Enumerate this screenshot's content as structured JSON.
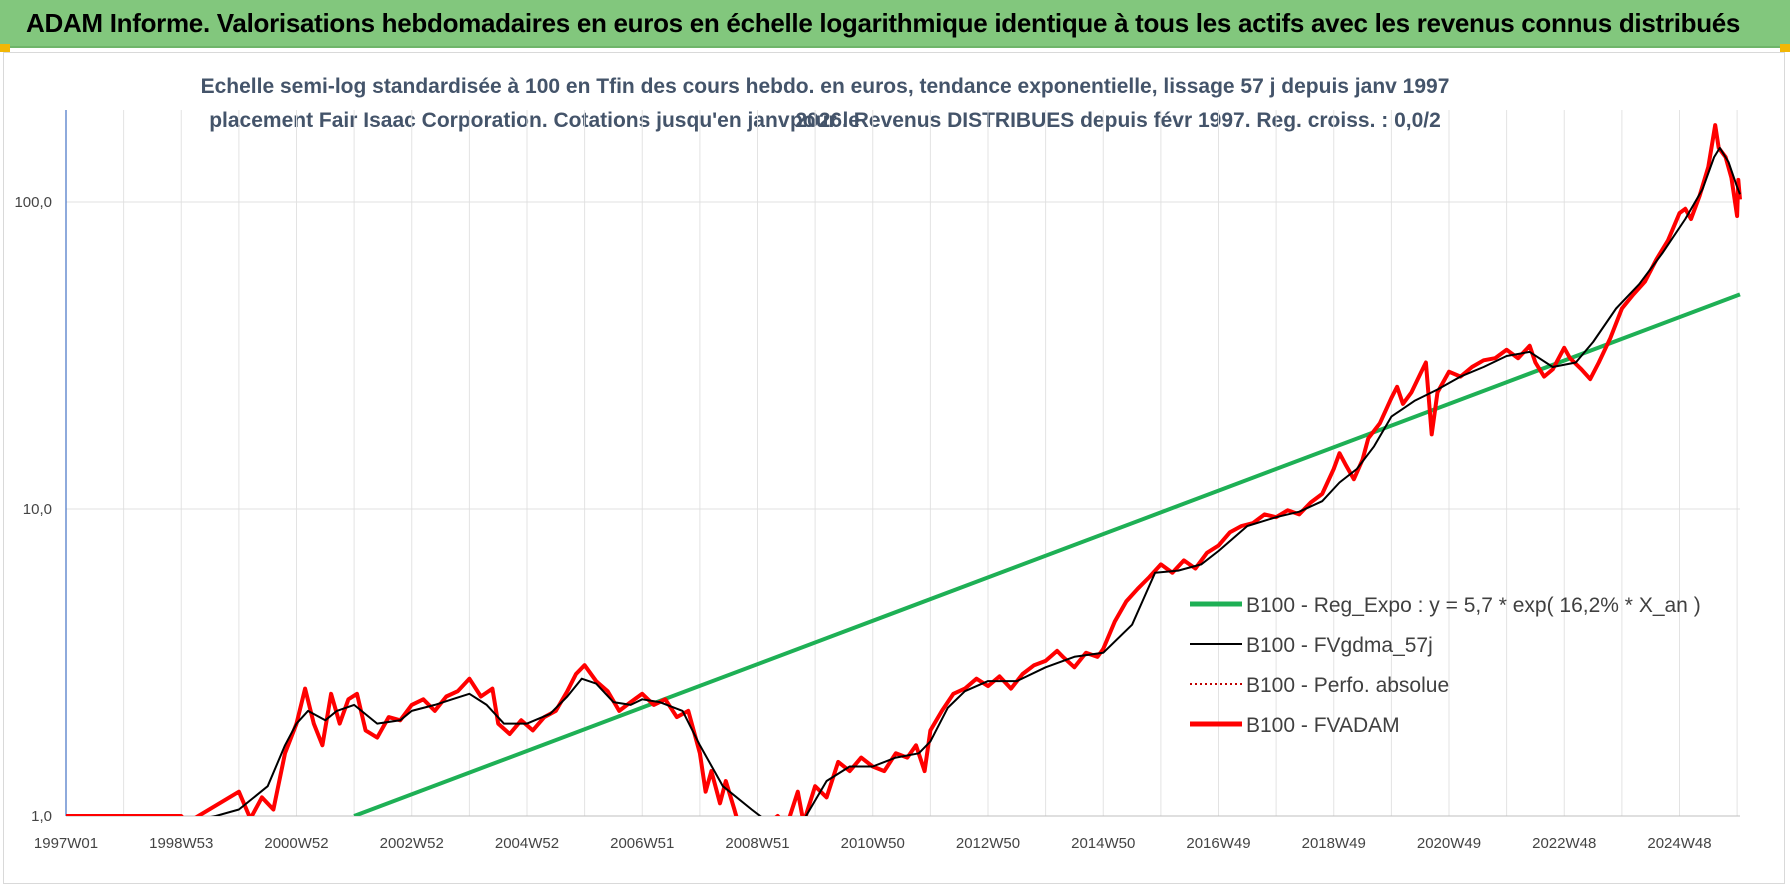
{
  "header": {
    "title": "ADAM Informe. Valorisations hebdomadaires en euros en échelle logarithmique identique à tous les actifs avec les revenus connus distribués"
  },
  "chart_data": {
    "type": "line",
    "title_line1": "Echelle semi-log standardisée à 100 en Tfin des cours hebdo. en euros, tendance exponentielle, lissage 57 j depuis janv 1997 pour le",
    "title_line2": "placement Fair Isaac Corporation. Cotations jusqu'en janv 2026. Revenus DISTRIBUES depuis févr 1997. Reg. croiss. : 0,0/2",
    "y_scale": "log",
    "ylim": [
      1,
      160
    ],
    "y_ticks": [
      {
        "value": 1,
        "label": "1,0"
      },
      {
        "value": 10,
        "label": "10,0"
      },
      {
        "value": 100,
        "label": "100,0"
      }
    ],
    "x_range": [
      1997.0,
      2026.05
    ],
    "x_ticks": [
      {
        "year": 1997.0,
        "label": "1997W01"
      },
      {
        "year": 1999.0,
        "label": "1998W53"
      },
      {
        "year": 2001.0,
        "label": "2000W52"
      },
      {
        "year": 2003.0,
        "label": "2002W52"
      },
      {
        "year": 2005.0,
        "label": "2004W52"
      },
      {
        "year": 2007.0,
        "label": "2006W51"
      },
      {
        "year": 2009.0,
        "label": "2008W51"
      },
      {
        "year": 2011.0,
        "label": "2010W50"
      },
      {
        "year": 2013.0,
        "label": "2012W50"
      },
      {
        "year": 2015.0,
        "label": "2014W50"
      },
      {
        "year": 2017.0,
        "label": "2016W49"
      },
      {
        "year": 2019.0,
        "label": "2018W49"
      },
      {
        "year": 2021.0,
        "label": "2020W49"
      },
      {
        "year": 2023.0,
        "label": "2022W48"
      },
      {
        "year": 2025.0,
        "label": "2024W48"
      }
    ],
    "grid": "horizontal and vertical",
    "legend_position": "right",
    "series": [
      {
        "name": "B100 - Reg_Expo : y = 5,7 * exp( 16,2% *  X_an )",
        "color": "#1eb055",
        "style": "thick-solid",
        "points": [
          [
            2002.0,
            1.0
          ],
          [
            2026.05,
            50.0
          ]
        ]
      },
      {
        "name": "B100 - FVgdma_57j",
        "color": "#000000",
        "style": "thin-solid",
        "points": [
          [
            1999.0,
            0.95
          ],
          [
            1999.6,
            1.0
          ],
          [
            2000.0,
            1.05
          ],
          [
            2000.5,
            1.25
          ],
          [
            2000.8,
            1.7
          ],
          [
            2001.0,
            2.0
          ],
          [
            2001.2,
            2.2
          ],
          [
            2001.5,
            2.05
          ],
          [
            2001.7,
            2.2
          ],
          [
            2002.0,
            2.3
          ],
          [
            2002.4,
            2.0
          ],
          [
            2002.8,
            2.05
          ],
          [
            2003.0,
            2.2
          ],
          [
            2003.4,
            2.3
          ],
          [
            2003.7,
            2.4
          ],
          [
            2004.0,
            2.5
          ],
          [
            2004.3,
            2.3
          ],
          [
            2004.6,
            2.0
          ],
          [
            2005.0,
            2.0
          ],
          [
            2005.4,
            2.15
          ],
          [
            2005.7,
            2.45
          ],
          [
            2005.95,
            2.8
          ],
          [
            2006.2,
            2.7
          ],
          [
            2006.5,
            2.35
          ],
          [
            2006.8,
            2.3
          ],
          [
            2007.0,
            2.4
          ],
          [
            2007.3,
            2.35
          ],
          [
            2007.7,
            2.2
          ],
          [
            2008.0,
            1.7
          ],
          [
            2008.4,
            1.25
          ],
          [
            2008.9,
            1.05
          ],
          [
            2009.2,
            0.95
          ],
          [
            2009.8,
            0.97
          ],
          [
            2010.2,
            1.3
          ],
          [
            2010.6,
            1.45
          ],
          [
            2011.0,
            1.45
          ],
          [
            2011.4,
            1.55
          ],
          [
            2011.8,
            1.6
          ],
          [
            2012.0,
            1.75
          ],
          [
            2012.3,
            2.25
          ],
          [
            2012.6,
            2.55
          ],
          [
            2013.0,
            2.75
          ],
          [
            2013.5,
            2.75
          ],
          [
            2014.0,
            3.05
          ],
          [
            2014.5,
            3.3
          ],
          [
            2015.0,
            3.4
          ],
          [
            2015.5,
            4.2
          ],
          [
            2015.9,
            6.2
          ],
          [
            2016.3,
            6.3
          ],
          [
            2016.7,
            6.6
          ],
          [
            2017.0,
            7.3
          ],
          [
            2017.5,
            8.8
          ],
          [
            2018.0,
            9.4
          ],
          [
            2018.4,
            9.8
          ],
          [
            2018.8,
            10.6
          ],
          [
            2019.1,
            12.2
          ],
          [
            2019.4,
            13.5
          ],
          [
            2019.7,
            16.0
          ],
          [
            2020.0,
            20.0
          ],
          [
            2020.4,
            22.5
          ],
          [
            2020.8,
            24.5
          ],
          [
            2021.2,
            27.0
          ],
          [
            2021.6,
            29.0
          ],
          [
            2022.0,
            31.5
          ],
          [
            2022.4,
            32.5
          ],
          [
            2022.8,
            29.0
          ],
          [
            2023.2,
            30.0
          ],
          [
            2023.5,
            35.0
          ],
          [
            2023.9,
            45.0
          ],
          [
            2024.3,
            54.0
          ],
          [
            2024.7,
            68.0
          ],
          [
            2025.1,
            88.0
          ],
          [
            2025.4,
            110.0
          ],
          [
            2025.6,
            140.0
          ],
          [
            2025.7,
            150.0
          ],
          [
            2025.85,
            135.0
          ],
          [
            2026.0,
            112.0
          ],
          [
            2026.05,
            106.0
          ]
        ]
      },
      {
        "name": "B100 - Perfo. absolue",
        "color": "#c00000",
        "style": "dotted",
        "points": []
      },
      {
        "name": "B100 - FVADAM",
        "color": "#ff0000",
        "style": "thick-solid",
        "points": [
          [
            1997.0,
            1.0
          ],
          [
            1997.1,
            1.0
          ],
          [
            1999.0,
            1.0
          ],
          [
            1999.1,
            0.95
          ],
          [
            2000.0,
            1.2
          ],
          [
            2000.2,
            0.98
          ],
          [
            2000.4,
            1.15
          ],
          [
            2000.6,
            1.05
          ],
          [
            2000.8,
            1.6
          ],
          [
            2001.0,
            2.0
          ],
          [
            2001.15,
            2.6
          ],
          [
            2001.3,
            2.0
          ],
          [
            2001.45,
            1.7
          ],
          [
            2001.6,
            2.5
          ],
          [
            2001.75,
            2.0
          ],
          [
            2001.9,
            2.4
          ],
          [
            2002.05,
            2.5
          ],
          [
            2002.2,
            1.9
          ],
          [
            2002.4,
            1.8
          ],
          [
            2002.6,
            2.1
          ],
          [
            2002.8,
            2.05
          ],
          [
            2003.0,
            2.3
          ],
          [
            2003.2,
            2.4
          ],
          [
            2003.4,
            2.2
          ],
          [
            2003.6,
            2.45
          ],
          [
            2003.8,
            2.55
          ],
          [
            2004.0,
            2.8
          ],
          [
            2004.2,
            2.45
          ],
          [
            2004.4,
            2.6
          ],
          [
            2004.5,
            2.0
          ],
          [
            2004.7,
            1.85
          ],
          [
            2004.9,
            2.05
          ],
          [
            2005.1,
            1.9
          ],
          [
            2005.3,
            2.1
          ],
          [
            2005.5,
            2.2
          ],
          [
            2005.7,
            2.55
          ],
          [
            2005.85,
            2.9
          ],
          [
            2006.0,
            3.1
          ],
          [
            2006.2,
            2.75
          ],
          [
            2006.4,
            2.55
          ],
          [
            2006.6,
            2.2
          ],
          [
            2006.8,
            2.35
          ],
          [
            2007.0,
            2.5
          ],
          [
            2007.2,
            2.3
          ],
          [
            2007.4,
            2.4
          ],
          [
            2007.6,
            2.1
          ],
          [
            2007.8,
            2.2
          ],
          [
            2008.0,
            1.6
          ],
          [
            2008.1,
            1.2
          ],
          [
            2008.2,
            1.4
          ],
          [
            2008.35,
            1.1
          ],
          [
            2008.45,
            1.3
          ],
          [
            2008.6,
            1.05
          ],
          [
            2008.7,
            0.9
          ],
          [
            2009.2,
            0.95
          ],
          [
            2009.35,
            1.0
          ],
          [
            2009.5,
            0.92
          ],
          [
            2009.7,
            1.2
          ],
          [
            2009.8,
            0.95
          ],
          [
            2010.0,
            1.25
          ],
          [
            2010.2,
            1.15
          ],
          [
            2010.4,
            1.5
          ],
          [
            2010.6,
            1.4
          ],
          [
            2010.8,
            1.55
          ],
          [
            2011.0,
            1.45
          ],
          [
            2011.2,
            1.4
          ],
          [
            2011.4,
            1.6
          ],
          [
            2011.6,
            1.55
          ],
          [
            2011.75,
            1.7
          ],
          [
            2011.9,
            1.4
          ],
          [
            2012.0,
            1.9
          ],
          [
            2012.2,
            2.2
          ],
          [
            2012.4,
            2.5
          ],
          [
            2012.6,
            2.6
          ],
          [
            2012.8,
            2.8
          ],
          [
            2013.0,
            2.65
          ],
          [
            2013.2,
            2.85
          ],
          [
            2013.4,
            2.6
          ],
          [
            2013.6,
            2.9
          ],
          [
            2013.8,
            3.1
          ],
          [
            2014.0,
            3.2
          ],
          [
            2014.2,
            3.45
          ],
          [
            2014.3,
            3.3
          ],
          [
            2014.5,
            3.05
          ],
          [
            2014.7,
            3.4
          ],
          [
            2014.9,
            3.3
          ],
          [
            2015.0,
            3.5
          ],
          [
            2015.2,
            4.3
          ],
          [
            2015.4,
            5.0
          ],
          [
            2015.6,
            5.5
          ],
          [
            2015.8,
            6.0
          ],
          [
            2016.0,
            6.6
          ],
          [
            2016.2,
            6.2
          ],
          [
            2016.4,
            6.8
          ],
          [
            2016.6,
            6.4
          ],
          [
            2016.8,
            7.2
          ],
          [
            2017.0,
            7.6
          ],
          [
            2017.2,
            8.4
          ],
          [
            2017.4,
            8.8
          ],
          [
            2017.6,
            9.0
          ],
          [
            2017.8,
            9.6
          ],
          [
            2018.0,
            9.4
          ],
          [
            2018.2,
            9.9
          ],
          [
            2018.4,
            9.6
          ],
          [
            2018.6,
            10.5
          ],
          [
            2018.8,
            11.2
          ],
          [
            2019.0,
            13.5
          ],
          [
            2019.1,
            15.2
          ],
          [
            2019.2,
            14.0
          ],
          [
            2019.35,
            12.5
          ],
          [
            2019.5,
            14.5
          ],
          [
            2019.6,
            17.0
          ],
          [
            2019.8,
            19.0
          ],
          [
            2020.0,
            23.0
          ],
          [
            2020.1,
            25.0
          ],
          [
            2020.2,
            22.0
          ],
          [
            2020.35,
            24.0
          ],
          [
            2020.5,
            27.5
          ],
          [
            2020.6,
            30.0
          ],
          [
            2020.7,
            17.5
          ],
          [
            2020.8,
            24.0
          ],
          [
            2021.0,
            28.0
          ],
          [
            2021.2,
            27.0
          ],
          [
            2021.4,
            29.0
          ],
          [
            2021.6,
            30.5
          ],
          [
            2021.8,
            31.0
          ],
          [
            2022.0,
            33.0
          ],
          [
            2022.2,
            31.0
          ],
          [
            2022.4,
            34.0
          ],
          [
            2022.5,
            30.0
          ],
          [
            2022.65,
            27.0
          ],
          [
            2022.8,
            28.5
          ],
          [
            2023.0,
            33.5
          ],
          [
            2023.1,
            31.0
          ],
          [
            2023.3,
            28.5
          ],
          [
            2023.45,
            26.5
          ],
          [
            2023.6,
            30.0
          ],
          [
            2023.8,
            36.0
          ],
          [
            2024.0,
            45.0
          ],
          [
            2024.2,
            50.0
          ],
          [
            2024.4,
            55.0
          ],
          [
            2024.6,
            65.0
          ],
          [
            2024.8,
            75.0
          ],
          [
            2025.0,
            92.0
          ],
          [
            2025.1,
            95.0
          ],
          [
            2025.2,
            88.0
          ],
          [
            2025.35,
            105.0
          ],
          [
            2025.5,
            130.0
          ],
          [
            2025.62,
            178.0
          ],
          [
            2025.68,
            150.0
          ],
          [
            2025.8,
            140.0
          ],
          [
            2025.9,
            120.0
          ],
          [
            2026.0,
            90.0
          ],
          [
            2026.02,
            118.0
          ],
          [
            2026.05,
            102.0
          ]
        ]
      }
    ]
  }
}
